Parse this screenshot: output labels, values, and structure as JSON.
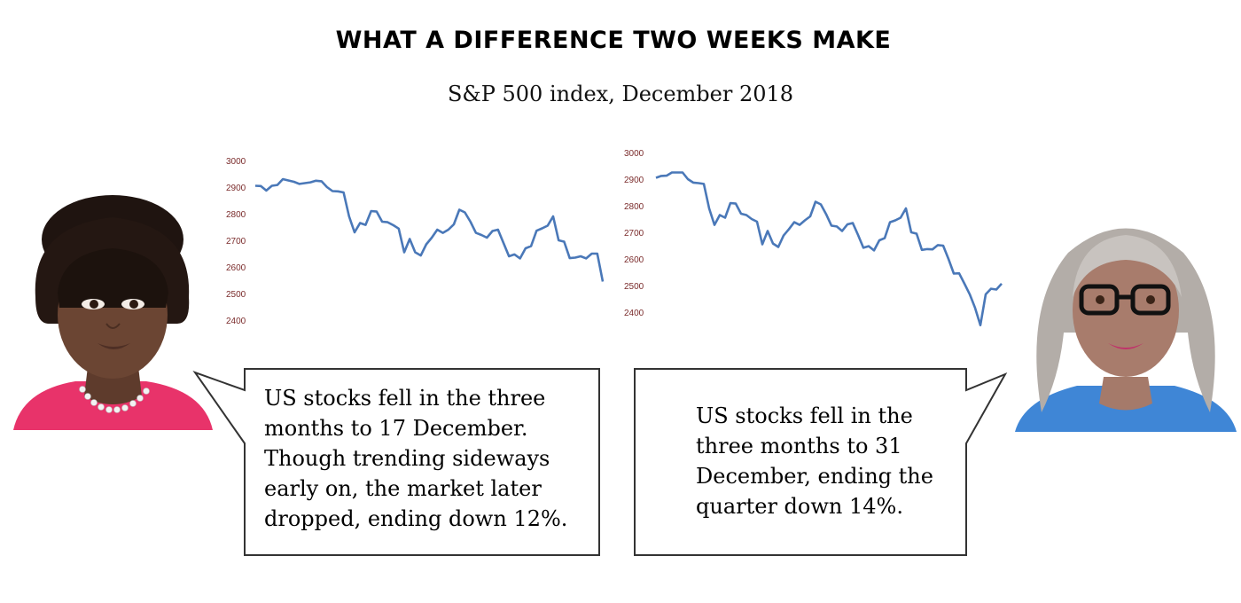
{
  "title": "WHAT A DIFFERENCE TWO WEEKS MAKE",
  "subtitle": "S&P 500 index, December 2018",
  "colors": {
    "line": "#4a78b8",
    "tick": "#7a2b2b"
  },
  "chart_data": [
    {
      "type": "line",
      "title": "",
      "xlabel": "",
      "ylabel": "",
      "ylim": [
        2400,
        3000
      ],
      "yticks": [
        3000,
        2900,
        2800,
        2700,
        2600,
        2500,
        2400
      ],
      "grid": false,
      "series": [
        {
          "values": [
            2905,
            2904,
            2887,
            2905,
            2908,
            2930,
            2925,
            2920,
            2912,
            2915,
            2918,
            2924,
            2922,
            2900,
            2885,
            2884,
            2880,
            2790,
            2730,
            2765,
            2758,
            2810,
            2808,
            2770,
            2768,
            2757,
            2744,
            2655,
            2705,
            2655,
            2643,
            2685,
            2710,
            2740,
            2728,
            2740,
            2760,
            2815,
            2805,
            2770,
            2728,
            2720,
            2710,
            2735,
            2740,
            2690,
            2640,
            2647,
            2632,
            2670,
            2678,
            2736,
            2745,
            2755,
            2790,
            2700,
            2695,
            2633,
            2635,
            2640,
            2632,
            2650,
            2650,
            2545
          ]
        }
      ]
    },
    {
      "type": "line",
      "title": "",
      "xlabel": "",
      "ylabel": "",
      "ylim": [
        2400,
        3000
      ],
      "yticks": [
        3000,
        2900,
        2800,
        2700,
        2600,
        2500,
        2400
      ],
      "grid": false,
      "series": [
        {
          "values": [
            2905,
            2912,
            2913,
            2925,
            2925,
            2925,
            2900,
            2887,
            2885,
            2882,
            2790,
            2728,
            2765,
            2755,
            2810,
            2808,
            2770,
            2765,
            2750,
            2740,
            2655,
            2705,
            2658,
            2645,
            2688,
            2712,
            2738,
            2728,
            2745,
            2760,
            2815,
            2805,
            2768,
            2725,
            2722,
            2705,
            2730,
            2735,
            2690,
            2642,
            2648,
            2632,
            2670,
            2678,
            2738,
            2745,
            2755,
            2790,
            2700,
            2695,
            2634,
            2637,
            2636,
            2652,
            2650,
            2600,
            2545,
            2546,
            2507,
            2467,
            2416,
            2351,
            2467,
            2488,
            2485,
            2507
          ]
        }
      ]
    }
  ],
  "bubbles": {
    "left": {
      "lines": [
        "US stocks fell in the three",
        "months to 17 December.",
        "Though trending sideways",
        "early on, the market later",
        "dropped, ending down 12%."
      ]
    },
    "right": {
      "lines": [
        "US stocks fell in the",
        "three months to 31",
        "December, ending the",
        "quarter down 14%."
      ]
    }
  }
}
